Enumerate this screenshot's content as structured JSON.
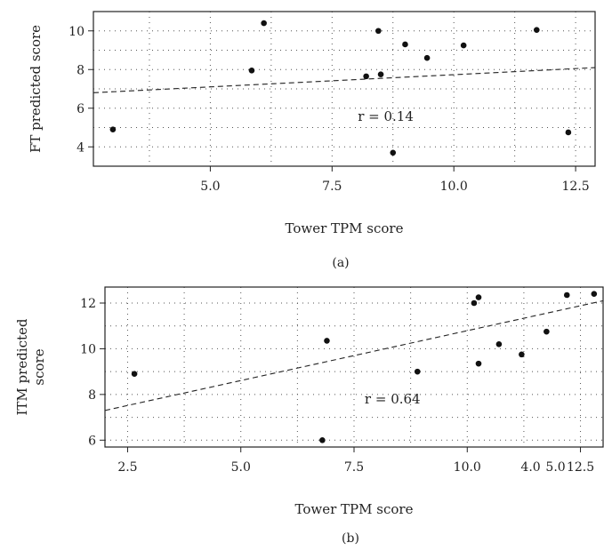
{
  "chart_data": [
    {
      "type": "scatter",
      "panel_label": "(a)",
      "xlabel": "Tower TPM score",
      "ylabel": "FT predicted score",
      "xlim": [
        2.6,
        12.9
      ],
      "ylim": [
        3.0,
        11.0
      ],
      "xticks": [
        5.0,
        7.5,
        10.0,
        12.5
      ],
      "xtick_labels": [
        "5.0",
        "7.5",
        "10.0",
        "12.5"
      ],
      "yticks": [
        4,
        6,
        8,
        10
      ],
      "ytick_labels": [
        "4",
        "6",
        "8",
        "10"
      ],
      "grid": true,
      "annotation": {
        "text": "r = 0.14",
        "x": 8.6,
        "y": 5.35
      },
      "points": [
        {
          "x": 3.0,
          "y": 4.9
        },
        {
          "x": 5.85,
          "y": 7.95
        },
        {
          "x": 6.1,
          "y": 10.4
        },
        {
          "x": 8.2,
          "y": 7.65
        },
        {
          "x": 8.45,
          "y": 10.0
        },
        {
          "x": 8.5,
          "y": 7.75
        },
        {
          "x": 8.75,
          "y": 3.7
        },
        {
          "x": 9.0,
          "y": 9.3
        },
        {
          "x": 9.45,
          "y": 8.6
        },
        {
          "x": 10.2,
          "y": 9.25
        },
        {
          "x": 11.7,
          "y": 10.05
        },
        {
          "x": 12.35,
          "y": 4.75
        }
      ],
      "trend_line": {
        "x": [
          2.6,
          12.9
        ],
        "y": [
          6.8,
          8.1
        ]
      }
    },
    {
      "type": "scatter",
      "panel_label": "(b)",
      "xlabel": "Tower TPM score",
      "ylabel": "ITM predicted score",
      "xlim": [
        2.0,
        13.0
      ],
      "ylim": [
        5.7,
        12.7
      ],
      "xticks": [
        2.5,
        5.0,
        7.5,
        10.0,
        12.5
      ],
      "xtick_labels": [
        "2.5",
        "5.0",
        "7.5",
        "10.0",
        "12.5"
      ],
      "yticks": [
        6,
        8,
        10,
        12
      ],
      "ytick_labels": [
        "6",
        "8",
        "10",
        "12"
      ],
      "extra_xtick_labels": [
        {
          "text": "4.0",
          "x": 11.4
        },
        {
          "text": "5.0",
          "x": 11.95
        }
      ],
      "grid": true,
      "annotation": {
        "text": "r = 0.64",
        "x": 8.35,
        "y": 7.6
      },
      "points": [
        {
          "x": 2.65,
          "y": 8.9
        },
        {
          "x": 6.8,
          "y": 6.0
        },
        {
          "x": 6.9,
          "y": 10.35
        },
        {
          "x": 8.9,
          "y": 9.0
        },
        {
          "x": 10.15,
          "y": 12.0
        },
        {
          "x": 10.25,
          "y": 12.25
        },
        {
          "x": 10.25,
          "y": 9.35
        },
        {
          "x": 10.7,
          "y": 10.2
        },
        {
          "x": 11.2,
          "y": 9.75
        },
        {
          "x": 11.75,
          "y": 10.75
        },
        {
          "x": 12.2,
          "y": 12.35
        },
        {
          "x": 12.8,
          "y": 12.4
        }
      ],
      "trend_line": {
        "x": [
          2.0,
          13.0
        ],
        "y": [
          7.3,
          12.1
        ]
      }
    }
  ]
}
